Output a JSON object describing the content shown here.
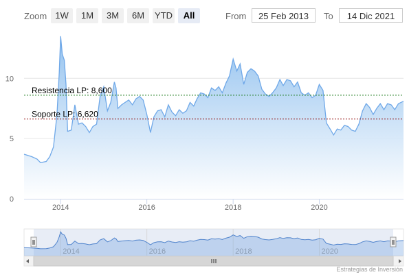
{
  "toolbar": {
    "zoom_label": "Zoom",
    "buttons": [
      "1W",
      "1M",
      "3M",
      "6M",
      "YTD",
      "All"
    ],
    "active": "All",
    "from_label": "From",
    "from_value": "25 Feb 2013",
    "to_label": "To",
    "to_value": "14 Dic 2021"
  },
  "credit": "Estrategias de Inversión",
  "colors": {
    "series_line": "#6fa8e8",
    "area_top": "#8ebfee",
    "area_bottom": "#ffffff",
    "resistance_line": "#1a7a1a",
    "support_line": "#8b0000",
    "navigator_mask": "#ccd6eb"
  },
  "chart_data": {
    "type": "area",
    "x_axis_type": "datetime",
    "x_range": [
      "2013-02-25",
      "2021-12-14"
    ],
    "ylim": [
      0,
      14
    ],
    "yticks": [
      0,
      5,
      10
    ],
    "xticks": [
      "2014",
      "2016",
      "2018",
      "2020"
    ],
    "navigator_xticks": [
      "2014",
      "2016",
      "2018",
      "2020"
    ],
    "grid": true,
    "annotations": [
      {
        "label": "Resistencia LP: 8,600",
        "value": 8.6,
        "style": "dashed"
      },
      {
        "label": "Soporte LP: 6,620",
        "value": 6.62,
        "style": "dashed"
      }
    ],
    "series": [
      {
        "x": [
          "2013-02-25",
          "2013-05-01",
          "2013-06-15",
          "2013-07-15",
          "2013-09-01",
          "2013-10-01",
          "2013-11-01",
          "2013-12-01",
          "2013-12-20",
          "2014-01-01",
          "2014-01-15",
          "2014-02-01",
          "2014-02-15",
          "2014-03-01",
          "2014-04-01",
          "2014-05-01",
          "2014-06-01",
          "2014-07-01",
          "2014-08-01",
          "2014-09-01",
          "2014-10-01",
          "2014-11-01",
          "2014-12-01",
          "2015-01-01",
          "2015-02-01",
          "2015-03-01",
          "2015-04-01",
          "2015-04-15",
          "2015-05-01",
          "2015-06-01",
          "2015-07-01",
          "2015-08-01",
          "2015-09-01",
          "2015-10-01",
          "2015-11-01",
          "2015-12-01",
          "2016-01-01",
          "2016-02-01",
          "2016-03-01",
          "2016-04-01",
          "2016-05-01",
          "2016-06-01",
          "2016-07-01",
          "2016-08-01",
          "2016-09-01",
          "2016-10-01",
          "2016-11-01",
          "2016-12-01",
          "2017-01-01",
          "2017-02-01",
          "2017-03-01",
          "2017-04-01",
          "2017-05-01",
          "2017-06-01",
          "2017-07-01",
          "2017-08-01",
          "2017-09-01",
          "2017-10-01",
          "2017-11-01",
          "2017-12-01",
          "2018-01-01",
          "2018-02-01",
          "2018-03-01",
          "2018-04-01",
          "2018-05-01",
          "2018-06-01",
          "2018-07-01",
          "2018-08-01",
          "2018-09-01",
          "2018-10-01",
          "2018-11-01",
          "2018-12-01",
          "2019-01-01",
          "2019-02-01",
          "2019-03-01",
          "2019-04-01",
          "2019-05-01",
          "2019-06-01",
          "2019-07-01",
          "2019-08-01",
          "2019-09-01",
          "2019-10-01",
          "2019-11-01",
          "2019-12-01",
          "2020-01-01",
          "2020-02-01",
          "2020-03-01",
          "2020-04-01",
          "2020-05-01",
          "2020-06-01",
          "2020-07-01",
          "2020-08-01",
          "2020-09-01",
          "2020-10-01",
          "2020-11-01",
          "2020-12-01",
          "2021-01-01",
          "2021-02-01",
          "2021-03-01",
          "2021-04-01",
          "2021-05-01",
          "2021-06-01",
          "2021-07-01",
          "2021-08-01",
          "2021-09-01",
          "2021-10-01",
          "2021-11-01",
          "2021-12-14"
        ],
        "values": [
          3.7,
          3.5,
          3.3,
          3.0,
          3.1,
          3.5,
          4.3,
          7.0,
          10.5,
          13.5,
          12.0,
          11.5,
          9.5,
          5.6,
          5.7,
          7.8,
          6.2,
          6.3,
          6.0,
          5.5,
          6.0,
          6.2,
          8.5,
          9.3,
          7.3,
          8.0,
          9.7,
          9.2,
          7.5,
          7.8,
          8.0,
          8.2,
          7.8,
          8.3,
          8.5,
          8.2,
          7.0,
          5.5,
          6.8,
          7.3,
          7.4,
          6.8,
          7.8,
          7.2,
          6.9,
          7.4,
          7.1,
          7.3,
          8.0,
          7.7,
          8.3,
          8.8,
          8.7,
          8.4,
          9.2,
          9.0,
          9.3,
          8.8,
          9.6,
          10.2,
          11.6,
          10.6,
          11.2,
          9.5,
          10.5,
          10.8,
          10.6,
          10.2,
          9.1,
          8.7,
          8.5,
          8.8,
          9.2,
          9.9,
          9.4,
          9.9,
          9.8,
          9.3,
          9.7,
          8.8,
          8.6,
          8.8,
          8.4,
          8.6,
          9.5,
          9.0,
          6.3,
          5.8,
          5.3,
          5.8,
          5.7,
          6.1,
          6.0,
          5.7,
          5.6,
          6.2,
          7.3,
          7.9,
          7.6,
          7.0,
          7.5,
          7.9,
          7.4,
          7.9,
          7.8,
          7.4,
          7.9,
          8.1
        ]
      }
    ]
  }
}
